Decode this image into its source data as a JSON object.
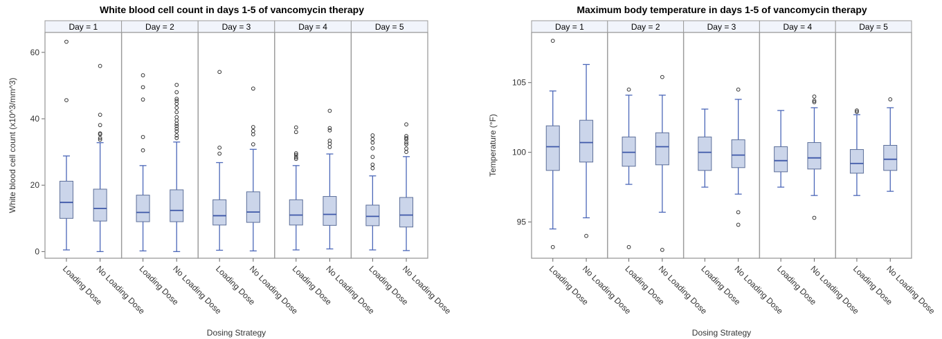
{
  "chart_data": [
    {
      "type": "box",
      "title": "White blood cell count in days 1-5 of vancomycin therapy",
      "xlabel": "Dosing Strategy",
      "ylabel": "White blood cell count (x10^3/mm^3)",
      "ylim": [
        -2,
        66
      ],
      "yticks": [
        0,
        20,
        40,
        60
      ],
      "categories": [
        "Loading Dose",
        "No Loading Dose"
      ],
      "panels": [
        {
          "label": "Day = 1",
          "boxes": [
            {
              "category": "Loading Dose",
              "min": 0.5,
              "q1": 10.0,
              "median": 14.8,
              "q3": 21.2,
              "max": 28.8,
              "outliers": [
                45.6,
                63.2
              ]
            },
            {
              "category": "No Loading Dose",
              "min": 0.0,
              "q1": 9.2,
              "median": 13.0,
              "q3": 18.8,
              "max": 32.8,
              "outliers": [
                33.7,
                34.2,
                35.3,
                35.6,
                38.1,
                41.2,
                55.9
              ]
            }
          ]
        },
        {
          "label": "Day = 2",
          "boxes": [
            {
              "category": "Loading Dose",
              "min": 0.2,
              "q1": 9.0,
              "median": 11.8,
              "q3": 17.0,
              "max": 25.9,
              "outliers": [
                30.5,
                34.5,
                45.8,
                49.5,
                53.1
              ]
            },
            {
              "category": "No Loading Dose",
              "min": 0.0,
              "q1": 9.0,
              "median": 12.4,
              "q3": 18.6,
              "max": 33.0,
              "outliers": [
                34.2,
                35.0,
                36.2,
                37.0,
                37.8,
                38.5,
                39.5,
                40.5,
                42.0,
                43.3,
                44.5,
                45.4,
                46.0,
                48.0,
                50.2
              ]
            }
          ]
        },
        {
          "label": "Day = 3",
          "boxes": [
            {
              "category": "Loading Dose",
              "min": 0.4,
              "q1": 8.0,
              "median": 10.8,
              "q3": 15.6,
              "max": 26.8,
              "outliers": [
                29.5,
                31.3,
                54.1
              ]
            },
            {
              "category": "No Loading Dose",
              "min": 0.2,
              "q1": 8.8,
              "median": 11.9,
              "q3": 18.0,
              "max": 30.8,
              "outliers": [
                32.3,
                35.3,
                36.3,
                37.5,
                49.1
              ]
            }
          ]
        },
        {
          "label": "Day = 4",
          "boxes": [
            {
              "category": "Loading Dose",
              "min": 0.5,
              "q1": 8.0,
              "median": 11.0,
              "q3": 15.6,
              "max": 25.9,
              "outliers": [
                27.9,
                28.4,
                29.1,
                29.6,
                36.0,
                37.4
              ]
            },
            {
              "category": "No Loading Dose",
              "min": 0.8,
              "q1": 7.9,
              "median": 11.2,
              "q3": 16.6,
              "max": 29.4,
              "outliers": [
                31.5,
                32.5,
                33.4,
                36.5,
                37.2,
                42.4
              ]
            }
          ]
        },
        {
          "label": "Day = 5",
          "boxes": [
            {
              "category": "Loading Dose",
              "min": 0.5,
              "q1": 7.8,
              "median": 10.6,
              "q3": 14.0,
              "max": 22.8,
              "outliers": [
                25.1,
                26.2,
                28.5,
                31.1,
                32.8,
                33.9,
                35.0
              ]
            },
            {
              "category": "No Loading Dose",
              "min": 0.3,
              "q1": 7.4,
              "median": 11.0,
              "q3": 16.3,
              "max": 28.6,
              "outliers": [
                30.0,
                31.0,
                32.3,
                32.9,
                33.8,
                34.2,
                34.8,
                38.3
              ]
            }
          ]
        }
      ]
    },
    {
      "type": "box",
      "title": "Maximum body temperature in days 1-5 of vancomycin therapy",
      "xlabel": "Dosing Strategy",
      "ylabel": "Temperature (°F)",
      "ylim": [
        92.4,
        108.6
      ],
      "yticks": [
        95,
        100,
        105
      ],
      "categories": [
        "Loading Dose",
        "No Loading Dose"
      ],
      "panels": [
        {
          "label": "Day = 1",
          "boxes": [
            {
              "category": "Loading Dose",
              "min": 94.5,
              "q1": 98.7,
              "median": 100.4,
              "q3": 101.9,
              "max": 104.4,
              "outliers": [
                93.2,
                108.0
              ]
            },
            {
              "category": "No Loading Dose",
              "min": 95.3,
              "q1": 99.3,
              "median": 100.7,
              "q3": 102.3,
              "max": 106.3,
              "outliers": [
                94.0
              ]
            }
          ]
        },
        {
          "label": "Day = 2",
          "boxes": [
            {
              "category": "Loading Dose",
              "min": 97.7,
              "q1": 99.0,
              "median": 100.0,
              "q3": 101.1,
              "max": 104.1,
              "outliers": [
                93.2,
                104.5
              ]
            },
            {
              "category": "No Loading Dose",
              "min": 95.7,
              "q1": 99.1,
              "median": 100.4,
              "q3": 101.4,
              "max": 104.1,
              "outliers": [
                93.0,
                105.4
              ]
            }
          ]
        },
        {
          "label": "Day = 3",
          "boxes": [
            {
              "category": "Loading Dose",
              "min": 97.5,
              "q1": 98.7,
              "median": 100.0,
              "q3": 101.1,
              "max": 103.1,
              "outliers": []
            },
            {
              "category": "No Loading Dose",
              "min": 97.0,
              "q1": 98.9,
              "median": 99.8,
              "q3": 100.9,
              "max": 103.8,
              "outliers": [
                94.8,
                95.7,
                104.5
              ]
            }
          ]
        },
        {
          "label": "Day = 4",
          "boxes": [
            {
              "category": "Loading Dose",
              "min": 97.5,
              "q1": 98.6,
              "median": 99.4,
              "q3": 100.4,
              "max": 103.0,
              "outliers": []
            },
            {
              "category": "No Loading Dose",
              "min": 96.9,
              "q1": 98.8,
              "median": 99.6,
              "q3": 100.7,
              "max": 103.2,
              "outliers": [
                95.3,
                103.6,
                103.7,
                104.0
              ]
            }
          ]
        },
        {
          "label": "Day = 5",
          "boxes": [
            {
              "category": "Loading Dose",
              "min": 96.9,
              "q1": 98.5,
              "median": 99.2,
              "q3": 100.2,
              "max": 102.7,
              "outliers": [
                102.9,
                103.0
              ]
            },
            {
              "category": "No Loading Dose",
              "min": 97.2,
              "q1": 98.7,
              "median": 99.5,
              "q3": 100.5,
              "max": 103.2,
              "outliers": [
                103.8
              ]
            }
          ]
        }
      ]
    }
  ],
  "colors": {
    "box_fill": "#cbd5ea",
    "box_stroke": "#5c6e98",
    "median": "#3d57a8",
    "whisker": "#4a66b8",
    "outlier": "#333333",
    "panel_border": "#9a9a9a",
    "header_fill": "#f1f4fb",
    "axis": "#666666"
  }
}
